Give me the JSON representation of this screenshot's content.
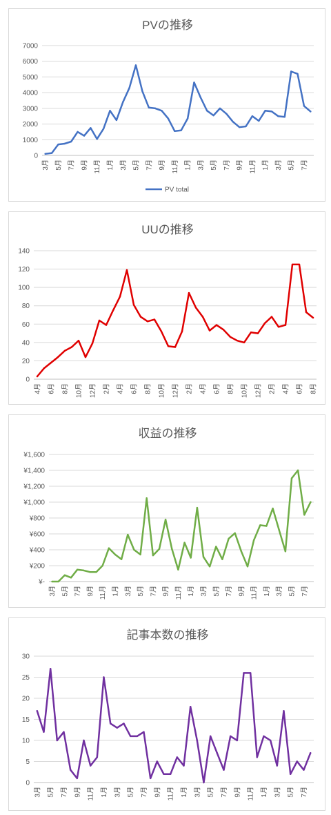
{
  "chart_data": [
    {
      "type": "line",
      "title": "PVの推移",
      "color": "#4472c4",
      "ylim": [
        0,
        7000
      ],
      "yticks": [
        0,
        1000,
        2000,
        3000,
        4000,
        5000,
        6000,
        7000
      ],
      "ytick_labels": [
        "0",
        "1000",
        "2000",
        "3000",
        "4000",
        "5000",
        "6000",
        "7000"
      ],
      "legend": {
        "position": "bottom",
        "label": "PV total"
      },
      "categories": [
        "3月",
        "4月",
        "5月",
        "6月",
        "7月",
        "8月",
        "9月",
        "10月",
        "11月",
        "12月",
        "1月",
        "2月",
        "3月",
        "4月",
        "5月",
        "6月",
        "7月",
        "8月",
        "9月",
        "10月",
        "11月",
        "12月",
        "1月",
        "2月",
        "3月",
        "4月",
        "5月",
        "6月",
        "7月",
        "8月",
        "9月",
        "10月",
        "11月",
        "12月",
        "1月",
        "2月",
        "3月",
        "4月",
        "5月",
        "6月",
        "7月",
        "8月"
      ],
      "xtick_every": 2,
      "values": [
        100,
        150,
        700,
        750,
        880,
        1500,
        1250,
        1750,
        1050,
        1700,
        2850,
        2250,
        3400,
        4300,
        5750,
        4100,
        3050,
        3000,
        2850,
        2350,
        1550,
        1600,
        2350,
        4650,
        3700,
        2850,
        2550,
        3000,
        2650,
        2150,
        1800,
        1850,
        2500,
        2200,
        2850,
        2800,
        2500,
        2450,
        5350,
        5200,
        3150,
        2800
      ]
    },
    {
      "type": "line",
      "title": "UUの推移",
      "color": "#e00000",
      "ylim": [
        0,
        140
      ],
      "yticks": [
        0,
        20,
        40,
        60,
        80,
        100,
        120,
        140
      ],
      "ytick_labels": [
        "0",
        "20",
        "40",
        "60",
        "80",
        "100",
        "120",
        "140"
      ],
      "categories": [
        "4月",
        "5月",
        "6月",
        "7月",
        "8月",
        "9月",
        "10月",
        "11月",
        "12月",
        "1月",
        "2月",
        "3月",
        "4月",
        "5月",
        "6月",
        "7月",
        "8月",
        "9月",
        "10月",
        "11月",
        "12月",
        "1月",
        "2月",
        "3月",
        "4月",
        "5月",
        "6月",
        "7月",
        "8月",
        "9月",
        "10月",
        "11月",
        "12月",
        "1月",
        "2月",
        "3月",
        "4月",
        "5月",
        "6月",
        "7月",
        "8月"
      ],
      "xtick_every": 2,
      "values": [
        3,
        12,
        18,
        24,
        31,
        35,
        42,
        24,
        39,
        64,
        59,
        75,
        90,
        119,
        81,
        68,
        63,
        65,
        52,
        36,
        35,
        52,
        94,
        78,
        68,
        53,
        59,
        54,
        46,
        42,
        40,
        51,
        50,
        61,
        68,
        57,
        59,
        125,
        125,
        73,
        67
      ]
    },
    {
      "type": "line",
      "title": "収益の推移",
      "color": "#70ad47",
      "ylim": [
        0,
        1600
      ],
      "yticks": [
        0,
        200,
        400,
        600,
        800,
        1000,
        1200,
        1400,
        1600
      ],
      "ytick_labels": [
        "¥-",
        "¥200",
        "¥400",
        "¥600",
        "¥800",
        "¥1,000",
        "¥1,200",
        "¥1,400",
        "¥1,600"
      ],
      "categories": [
        "3月",
        "4月",
        "5月",
        "6月",
        "7月",
        "8月",
        "9月",
        "10月",
        "11月",
        "12月",
        "1月",
        "2月",
        "3月",
        "4月",
        "5月",
        "6月",
        "7月",
        "8月",
        "9月",
        "10月",
        "11月",
        "12月",
        "1月",
        "2月",
        "3月",
        "4月",
        "5月",
        "6月",
        "7月",
        "8月",
        "9月",
        "10月",
        "11月",
        "12月",
        "1月",
        "2月",
        "3月",
        "4月",
        "5月",
        "6月",
        "7月",
        "8月"
      ],
      "xtick_every": 2,
      "values": [
        0,
        0,
        80,
        50,
        150,
        140,
        120,
        120,
        200,
        420,
        340,
        280,
        590,
        400,
        340,
        1050,
        330,
        410,
        780,
        410,
        150,
        490,
        300,
        930,
        310,
        190,
        440,
        280,
        540,
        610,
        380,
        190,
        520,
        710,
        700,
        920,
        650,
        380,
        1300,
        1400,
        840,
        1000
      ]
    },
    {
      "type": "line",
      "title": "記事本数の推移",
      "color": "#7030a0",
      "ylim": [
        0,
        30
      ],
      "yticks": [
        0,
        5,
        10,
        15,
        20,
        25,
        30
      ],
      "ytick_labels": [
        "0",
        "5",
        "10",
        "15",
        "20",
        "25",
        "30"
      ],
      "categories": [
        "3月",
        "4月",
        "5月",
        "6月",
        "7月",
        "8月",
        "9月",
        "10月",
        "11月",
        "12月",
        "1月",
        "2月",
        "3月",
        "4月",
        "5月",
        "6月",
        "7月",
        "8月",
        "9月",
        "10月",
        "11月",
        "12月",
        "1月",
        "2月",
        "3月",
        "4月",
        "5月",
        "6月",
        "7月",
        "8月",
        "9月",
        "10月",
        "11月",
        "12月",
        "1月",
        "2月",
        "3月",
        "4月",
        "5月",
        "6月",
        "7月",
        "8月"
      ],
      "xtick_every": 2,
      "values": [
        17,
        12,
        27,
        10,
        12,
        3,
        1,
        10,
        4,
        6,
        25,
        14,
        13,
        14,
        11,
        11,
        12,
        1,
        5,
        2,
        2,
        6,
        4,
        18,
        10,
        0,
        11,
        7,
        3,
        11,
        10,
        26,
        26,
        6,
        11,
        10,
        4,
        17,
        2,
        5,
        3,
        7
      ]
    }
  ]
}
